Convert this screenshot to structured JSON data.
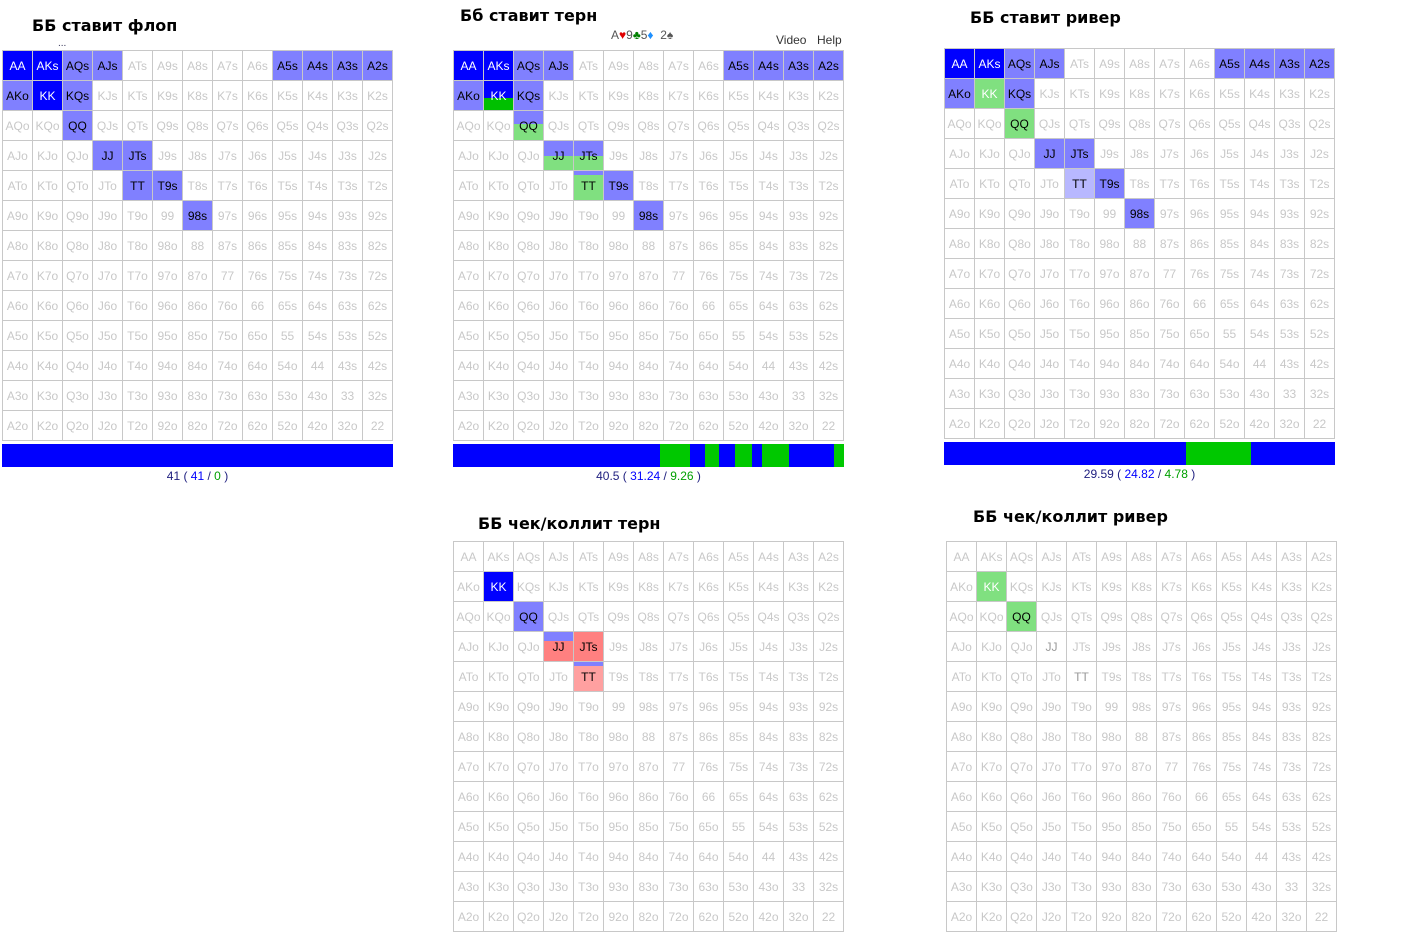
{
  "colors": {
    "strong": "#0000ff",
    "weak": "#8080ff",
    "pale": "#b8b8ff",
    "green": "#00c000",
    "lightgreen": "#80e080",
    "red": "#ff8080",
    "lightred": "#ffa0a0",
    "inactive_text": "#c8c8c8",
    "bar_green": "#00c800"
  },
  "hands": [
    [
      "AA",
      "AKs",
      "AQs",
      "AJs",
      "ATs",
      "A9s",
      "A8s",
      "A7s",
      "A6s",
      "A5s",
      "A4s",
      "A3s",
      "A2s"
    ],
    [
      "AKo",
      "KK",
      "KQs",
      "KJs",
      "KTs",
      "K9s",
      "K8s",
      "K7s",
      "K6s",
      "K5s",
      "K4s",
      "K3s",
      "K2s"
    ],
    [
      "AQo",
      "KQo",
      "QQ",
      "QJs",
      "QTs",
      "Q9s",
      "Q8s",
      "Q7s",
      "Q6s",
      "Q5s",
      "Q4s",
      "Q3s",
      "Q2s"
    ],
    [
      "AJo",
      "KJo",
      "QJo",
      "JJ",
      "JTs",
      "J9s",
      "J8s",
      "J7s",
      "J6s",
      "J5s",
      "J4s",
      "J3s",
      "J2s"
    ],
    [
      "ATo",
      "KTo",
      "QTo",
      "JTo",
      "TT",
      "T9s",
      "T8s",
      "T7s",
      "T6s",
      "T5s",
      "T4s",
      "T3s",
      "T2s"
    ],
    [
      "A9o",
      "K9o",
      "Q9o",
      "J9o",
      "T9o",
      "99",
      "98s",
      "97s",
      "96s",
      "95s",
      "94s",
      "93s",
      "92s"
    ],
    [
      "A8o",
      "K8o",
      "Q8o",
      "J8o",
      "T8o",
      "98o",
      "88",
      "87s",
      "86s",
      "85s",
      "84s",
      "83s",
      "82s"
    ],
    [
      "A7o",
      "K7o",
      "Q7o",
      "J7o",
      "T7o",
      "97o",
      "87o",
      "77",
      "76s",
      "75s",
      "74s",
      "73s",
      "72s"
    ],
    [
      "A6o",
      "K6o",
      "Q6o",
      "J6o",
      "T6o",
      "96o",
      "86o",
      "76o",
      "66",
      "65s",
      "64s",
      "63s",
      "62s"
    ],
    [
      "A5o",
      "K5o",
      "Q5o",
      "J5o",
      "T5o",
      "95o",
      "85o",
      "75o",
      "65o",
      "55",
      "54s",
      "53s",
      "52s"
    ],
    [
      "A4o",
      "K4o",
      "Q4o",
      "J4o",
      "T4o",
      "94o",
      "84o",
      "74o",
      "64o",
      "54o",
      "44",
      "43s",
      "42s"
    ],
    [
      "A3o",
      "K3o",
      "Q3o",
      "J3o",
      "T3o",
      "93o",
      "83o",
      "73o",
      "63o",
      "53o",
      "43o",
      "33",
      "32s"
    ],
    [
      "A2o",
      "K2o",
      "Q2o",
      "J2o",
      "T2o",
      "92o",
      "82o",
      "72o",
      "62o",
      "52o",
      "42o",
      "32o",
      "22"
    ]
  ],
  "panels": [
    {
      "id": "bb-bet-flop",
      "title": "ББ ставит флоп",
      "dots": "...",
      "cells": {
        "AA": [
          "strong"
        ],
        "AKs": [
          "strong"
        ],
        "KK": [
          "strong"
        ],
        "AQs": [
          "weak"
        ],
        "AJs": [
          "weak"
        ],
        "A5s": [
          "weak"
        ],
        "A4s": [
          "weak"
        ],
        "A3s": [
          "weak"
        ],
        "A2s": [
          "weak"
        ],
        "AKo": [
          "weak"
        ],
        "KQs": [
          "weak"
        ],
        "QQ": [
          "weak"
        ],
        "JJ": [
          "weak"
        ],
        "JTs": [
          "weak"
        ],
        "TT": [
          "weak"
        ],
        "T9s": [
          "weak"
        ],
        "98s": [
          "weak"
        ]
      },
      "bar": {
        "green_segments": []
      },
      "stats": {
        "total": "41",
        "first": "41",
        "second": "0"
      }
    },
    {
      "id": "bb-bet-turn",
      "title": "Бб ставит терн",
      "board": [
        {
          "rank": "A",
          "suit": "♥",
          "color": "#e00000"
        },
        {
          "rank": "9",
          "suit": "♣",
          "color": "#008000"
        },
        {
          "rank": "5",
          "suit": "♦",
          "color": "#1e90ff"
        },
        {
          "rank": "2",
          "suit": "♠",
          "color": "#555555"
        }
      ],
      "links": {
        "video": "Video",
        "help": "Help"
      },
      "cells": {
        "AA": [
          "strong"
        ],
        "AKs": [
          "strong"
        ],
        "KK": [
          "strong",
          "green",
          0.4
        ],
        "AQs": [
          "weak"
        ],
        "AJs": [
          "weak"
        ],
        "A5s": [
          "weak"
        ],
        "A4s": [
          "weak"
        ],
        "A3s": [
          "weak"
        ],
        "A2s": [
          "weak"
        ],
        "AKo": [
          "weak"
        ],
        "KQs": [
          "weak"
        ],
        "QQ": [
          "weak",
          "lightgreen",
          0.55
        ],
        "JJ": [
          "weak",
          "lightgreen",
          0.5
        ],
        "JTs": [
          "weak",
          "lightgreen",
          0.5
        ],
        "TT": [
          "weak",
          "lightgreen",
          0.85
        ],
        "T9s": [
          "weak"
        ],
        "98s": [
          "weak"
        ]
      },
      "bar": {
        "green_segments": [
          [
            0.53,
            0.605
          ],
          [
            0.645,
            0.68
          ],
          [
            0.72,
            0.765
          ],
          [
            0.79,
            0.86
          ],
          [
            0.975,
            1.0
          ]
        ]
      },
      "stats": {
        "total": "40.5",
        "first": "31.24",
        "second": "9.26"
      }
    },
    {
      "id": "bb-bet-river",
      "title": "ББ ставит ривер",
      "cells": {
        "AA": [
          "strong"
        ],
        "AKs": [
          "strong"
        ],
        "KK": [
          "lightgreen"
        ],
        "AQs": [
          "weak"
        ],
        "AJs": [
          "weak"
        ],
        "A5s": [
          "weak"
        ],
        "A4s": [
          "weak"
        ],
        "A3s": [
          "weak"
        ],
        "A2s": [
          "weak"
        ],
        "AKo": [
          "weak"
        ],
        "KQs": [
          "weak"
        ],
        "QQ": [
          "lightgreen"
        ],
        "JJ": [
          "weak"
        ],
        "JTs": [
          "weak"
        ],
        "TT": [
          "pale"
        ],
        "T9s": [
          "weak"
        ],
        "98s": [
          "weak"
        ]
      },
      "bar": {
        "green_segments": [
          [
            0.62,
            0.785
          ]
        ]
      },
      "stats": {
        "total": "29.59",
        "first": "24.82",
        "second": "4.78"
      }
    },
    {
      "id": "bb-checkcall-turn",
      "title": "ББ чек/коллит терн",
      "cells": {
        "KK": [
          "strong"
        ],
        "QQ": [
          "weak"
        ],
        "JJ": [
          "weak",
          "red",
          0.7
        ],
        "JTs": [
          "red"
        ],
        "TT": [
          "weak",
          "lightred",
          0.85
        ]
      }
    },
    {
      "id": "bb-checkcall-river",
      "title": "ББ чек/коллит ривер",
      "cells": {
        "KK": [
          "lightgreen"
        ],
        "QQ": [
          "lightgreen"
        ],
        "JJ": [
          "dim"
        ],
        "TT": [
          "dim"
        ]
      }
    }
  ]
}
